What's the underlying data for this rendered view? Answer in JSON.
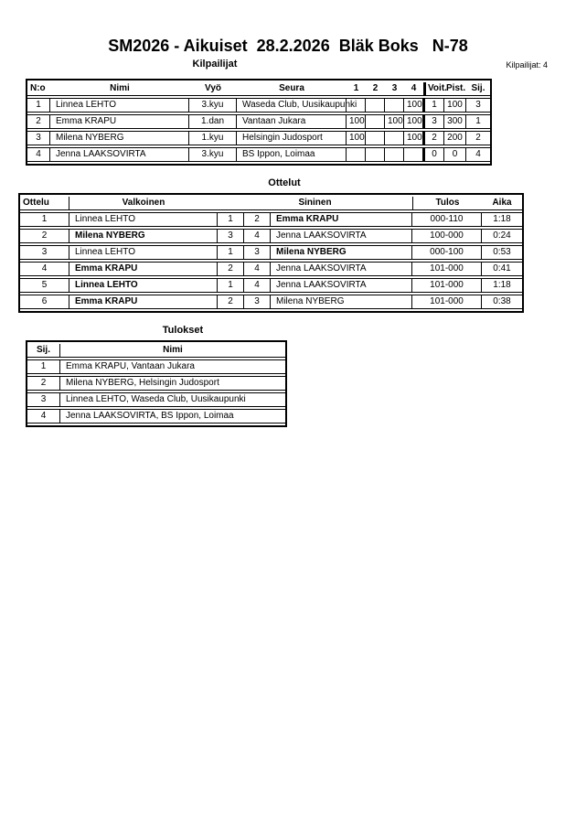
{
  "page": {
    "title": "SM2026 - Aikuiset  28.2.2026  Bläk Boks   N-78",
    "competitors_count": "Kilpailijat: 4"
  },
  "kilpailijat": {
    "heading": "Kilpailijat",
    "columns": [
      "N:o",
      "Nimi",
      "Vyö",
      "Seura",
      "1",
      "2",
      "3",
      "4",
      "Voit.",
      "Pist.",
      "Sij."
    ],
    "rows": [
      {
        "no": "1",
        "nimi": "Linnea LEHTO",
        "vyo": "3.kyu",
        "seura": "Waseda Club, Uusikaupunki",
        "scores": [
          "",
          "",
          "",
          "100"
        ],
        "voit": "1",
        "pist": "100",
        "sij": "3"
      },
      {
        "no": "2",
        "nimi": "Emma KRAPU",
        "vyo": "1.dan",
        "seura": "Vantaan Jukara",
        "scores": [
          "100",
          "",
          "100",
          "100"
        ],
        "voit": "3",
        "pist": "300",
        "sij": "1"
      },
      {
        "no": "3",
        "nimi": "Milena NYBERG",
        "vyo": "1.kyu",
        "seura": "Helsingin Judosport",
        "scores": [
          "100",
          "",
          "",
          "100"
        ],
        "voit": "2",
        "pist": "200",
        "sij": "2"
      },
      {
        "no": "4",
        "nimi": "Jenna LAAKSOVIRTA",
        "vyo": "3.kyu",
        "seura": "BS Ippon, Loimaa",
        "scores": [
          "",
          "",
          "",
          ""
        ],
        "voit": "0",
        "pist": "0",
        "sij": "4"
      }
    ]
  },
  "ottelut": {
    "heading": "Ottelut",
    "columns": [
      "Ottelu",
      "Valkoinen",
      "Sininen",
      "Tulos",
      "Aika"
    ],
    "rows": [
      {
        "no": "1",
        "white": "Linnea LEHTO",
        "white_no": "1",
        "blue_no": "2",
        "blue": "Emma KRAPU",
        "winner": "blue",
        "tulos": "000-110",
        "aika": "1:18"
      },
      {
        "no": "2",
        "white": "Milena NYBERG",
        "white_no": "3",
        "blue_no": "4",
        "blue": "Jenna LAAKSOVIRTA",
        "winner": "white",
        "tulos": "100-000",
        "aika": "0:24"
      },
      {
        "no": "3",
        "white": "Linnea LEHTO",
        "white_no": "1",
        "blue_no": "3",
        "blue": "Milena NYBERG",
        "winner": "blue",
        "tulos": "000-100",
        "aika": "0:53"
      },
      {
        "no": "4",
        "white": "Emma KRAPU",
        "white_no": "2",
        "blue_no": "4",
        "blue": "Jenna LAAKSOVIRTA",
        "winner": "white",
        "tulos": "101-000",
        "aika": "0:41"
      },
      {
        "no": "5",
        "white": "Linnea LEHTO",
        "white_no": "1",
        "blue_no": "4",
        "blue": "Jenna LAAKSOVIRTA",
        "winner": "white",
        "tulos": "101-000",
        "aika": "1:18"
      },
      {
        "no": "6",
        "white": "Emma KRAPU",
        "white_no": "2",
        "blue_no": "3",
        "blue": "Milena NYBERG",
        "winner": "white",
        "tulos": "101-000",
        "aika": "0:38"
      }
    ]
  },
  "tulokset": {
    "heading": "Tulokset",
    "columns": [
      "Sij.",
      "Nimi"
    ],
    "rows": [
      {
        "sij": "1",
        "nimi": "Emma KRAPU, Vantaan Jukara"
      },
      {
        "sij": "2",
        "nimi": "Milena NYBERG, Helsingin Judosport"
      },
      {
        "sij": "3",
        "nimi": "Linnea LEHTO, Waseda Club, Uusikaupunki"
      },
      {
        "sij": "4",
        "nimi": "Jenna LAAKSOVIRTA, BS Ippon, Loimaa"
      }
    ]
  }
}
